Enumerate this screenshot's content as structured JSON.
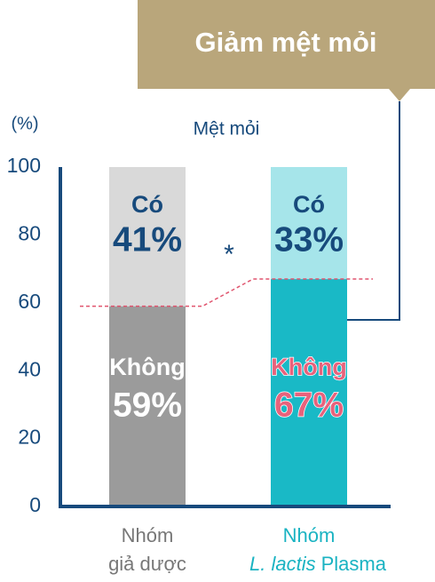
{
  "chart_data": {
    "type": "stacked_bar",
    "title": "Mệt mỏi",
    "y_label": "(%)",
    "annotation": "Giảm mệt mỏi",
    "significance": "*",
    "categories": [
      [
        "Nhóm",
        "giả dược"
      ],
      [
        "Nhóm",
        "L. lactis",
        "Plasma"
      ]
    ],
    "series": [
      {
        "name": "Không",
        "values": [
          59,
          67
        ],
        "value_labels": [
          "59%",
          "67%"
        ],
        "colors": [
          "#9b9b9b",
          "#19b9c6"
        ],
        "label_colors": [
          "#ffffff",
          "#e8627c"
        ]
      },
      {
        "name": "Có",
        "values": [
          41,
          33
        ],
        "value_labels": [
          "41%",
          "33%"
        ],
        "colors": [
          "#d9d9d9",
          "#a6e5ea"
        ],
        "label_colors": [
          "#174a7c",
          "#174a7c"
        ]
      }
    ],
    "ylim": [
      0,
      100
    ],
    "yticks": [
      0,
      20,
      40,
      60,
      80,
      100
    ]
  }
}
